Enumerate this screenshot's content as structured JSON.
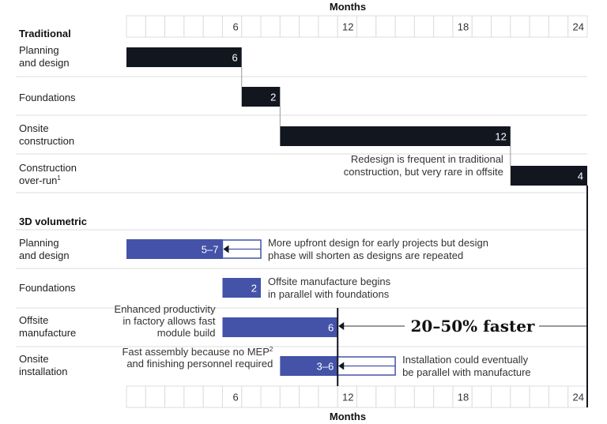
{
  "chart_data": {
    "type": "gantt",
    "axis": {
      "label": "Months",
      "min": 0,
      "max": 24,
      "ticks": [
        6,
        12,
        18,
        24
      ]
    },
    "sections": [
      {
        "title": "Traditional",
        "rows": [
          {
            "label": [
              "Planning",
              "and design"
            ],
            "start": 0,
            "end": 6,
            "value_label": "6",
            "style": "dark"
          },
          {
            "label": [
              "Foundations"
            ],
            "start": 6,
            "end": 8,
            "value_label": "2",
            "style": "dark"
          },
          {
            "label": [
              "Onsite",
              "construction"
            ],
            "start": 8,
            "end": 20,
            "value_label": "12",
            "style": "dark"
          },
          {
            "label": [
              "Construction",
              "over-run"
            ],
            "label_sup": "1",
            "start": 20,
            "end": 24,
            "value_label": "4",
            "style": "dark",
            "note": [
              "Redesign is frequent in traditional",
              "construction, but very rare in offsite"
            ]
          }
        ]
      },
      {
        "title": "3D volumetric",
        "rows": [
          {
            "label": [
              "Planning",
              "and design"
            ],
            "start": 0,
            "end": 5,
            "outline_end": 7,
            "value_label": "5–7",
            "style": "blue",
            "note": [
              "More upfront design for early projects but design",
              "phase will shorten as designs are repeated"
            ]
          },
          {
            "label": [
              "Foundations"
            ],
            "start": 5,
            "end": 7,
            "value_label": "2",
            "style": "blue",
            "note": [
              "Offsite manufacture begins",
              "in parallel with foundations"
            ]
          },
          {
            "label": [
              "Offsite",
              "manufacture"
            ],
            "start": 5,
            "end": 11,
            "value_label": "6",
            "style": "blue",
            "note_left": [
              "Enhanced productivity",
              "in factory allows fast",
              "module build"
            ]
          },
          {
            "label": [
              "Onsite",
              "installation"
            ],
            "start": 8,
            "end": 11,
            "outline_end": 14,
            "value_label": "3–6",
            "style": "blue",
            "note_left": [
              "Fast assembly because no MEP",
              "and finishing  personnel required"
            ],
            "note_left_sup": "2",
            "note": [
              "Installation could eventually",
              "be parallel with manufacture"
            ]
          }
        ]
      }
    ],
    "highlight": "20–50% faster",
    "colors": {
      "dark": "#12161f",
      "blue": "#4453a8",
      "line": "#dcdcdc"
    }
  }
}
